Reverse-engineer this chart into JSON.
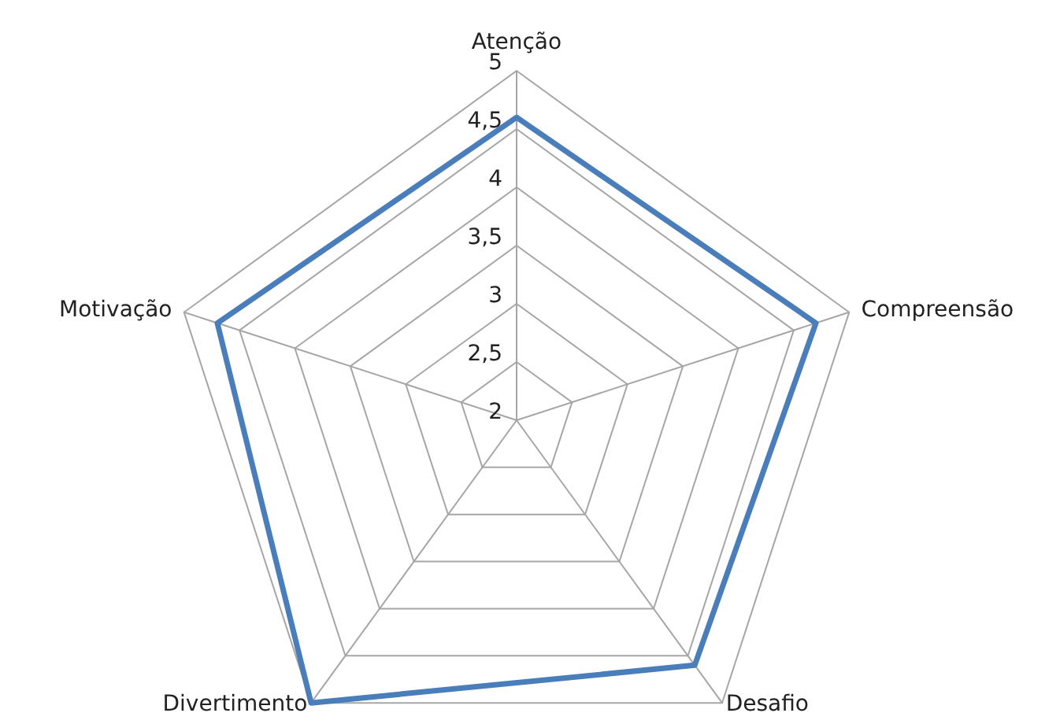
{
  "chart_data": {
    "type": "radar",
    "categories": [
      "Atenção",
      "Compreensão",
      "Desafio",
      "Divertimento",
      "Motivação"
    ],
    "series": [
      {
        "color": "#4a7ebb",
        "values": [
          4.6,
          4.7,
          4.6,
          5.0,
          4.7
        ]
      }
    ],
    "ylim": [
      2,
      5
    ],
    "yticks": [
      2,
      {
        "value": 2.5,
        "label": "2,5"
      },
      3,
      {
        "value": 3.5,
        "label": "3,5"
      },
      4,
      {
        "value": 4.5,
        "label": "4,5"
      },
      5
    ],
    "grid": true,
    "marker": "none",
    "line_style": "solid"
  }
}
